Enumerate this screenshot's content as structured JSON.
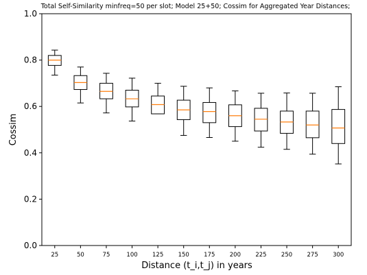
{
  "chart_data": {
    "type": "box",
    "title": "Total Self-Similarity minfreq=50 per slot; Model 25+50; Cossim for Aggregated Year Distances;",
    "xlabel": "Distance (t_i,t_j) in years",
    "ylabel": "Cossim",
    "ylim": [
      0.0,
      1.0
    ],
    "yticks": [
      "0.0",
      "0.2",
      "0.4",
      "0.6",
      "0.8",
      "1.0"
    ],
    "categories": [
      "25",
      "50",
      "75",
      "100",
      "125",
      "150",
      "175",
      "200",
      "225",
      "250",
      "275",
      "300"
    ],
    "boxes": [
      {
        "whisker_low": 0.735,
        "q1": 0.777,
        "median": 0.8,
        "q3": 0.82,
        "whisker_high": 0.843
      },
      {
        "whisker_low": 0.615,
        "q1": 0.673,
        "median": 0.703,
        "q3": 0.733,
        "whisker_high": 0.77
      },
      {
        "whisker_low": 0.572,
        "q1": 0.633,
        "median": 0.665,
        "q3": 0.7,
        "whisker_high": 0.743
      },
      {
        "whisker_low": 0.537,
        "q1": 0.598,
        "median": 0.633,
        "q3": 0.67,
        "whisker_high": 0.722
      },
      {
        "whisker_low": 0.568,
        "q1": 0.568,
        "median": 0.608,
        "q3": 0.645,
        "whisker_high": 0.7
      },
      {
        "whisker_low": 0.475,
        "q1": 0.543,
        "median": 0.585,
        "q3": 0.627,
        "whisker_high": 0.687
      },
      {
        "whisker_low": 0.466,
        "q1": 0.53,
        "median": 0.578,
        "q3": 0.617,
        "whisker_high": 0.68
      },
      {
        "whisker_low": 0.45,
        "q1": 0.513,
        "median": 0.56,
        "q3": 0.607,
        "whisker_high": 0.667
      },
      {
        "whisker_low": 0.424,
        "q1": 0.494,
        "median": 0.545,
        "q3": 0.592,
        "whisker_high": 0.657
      },
      {
        "whisker_low": 0.415,
        "q1": 0.484,
        "median": 0.533,
        "q3": 0.58,
        "whisker_high": 0.658
      },
      {
        "whisker_low": 0.394,
        "q1": 0.465,
        "median": 0.52,
        "q3": 0.58,
        "whisker_high": 0.657
      },
      {
        "whisker_low": 0.352,
        "q1": 0.44,
        "median": 0.507,
        "q3": 0.587,
        "whisker_high": 0.685
      }
    ],
    "median_color": "#ff7f0e",
    "box_color": "#000000",
    "grid": false,
    "legend": "none"
  }
}
